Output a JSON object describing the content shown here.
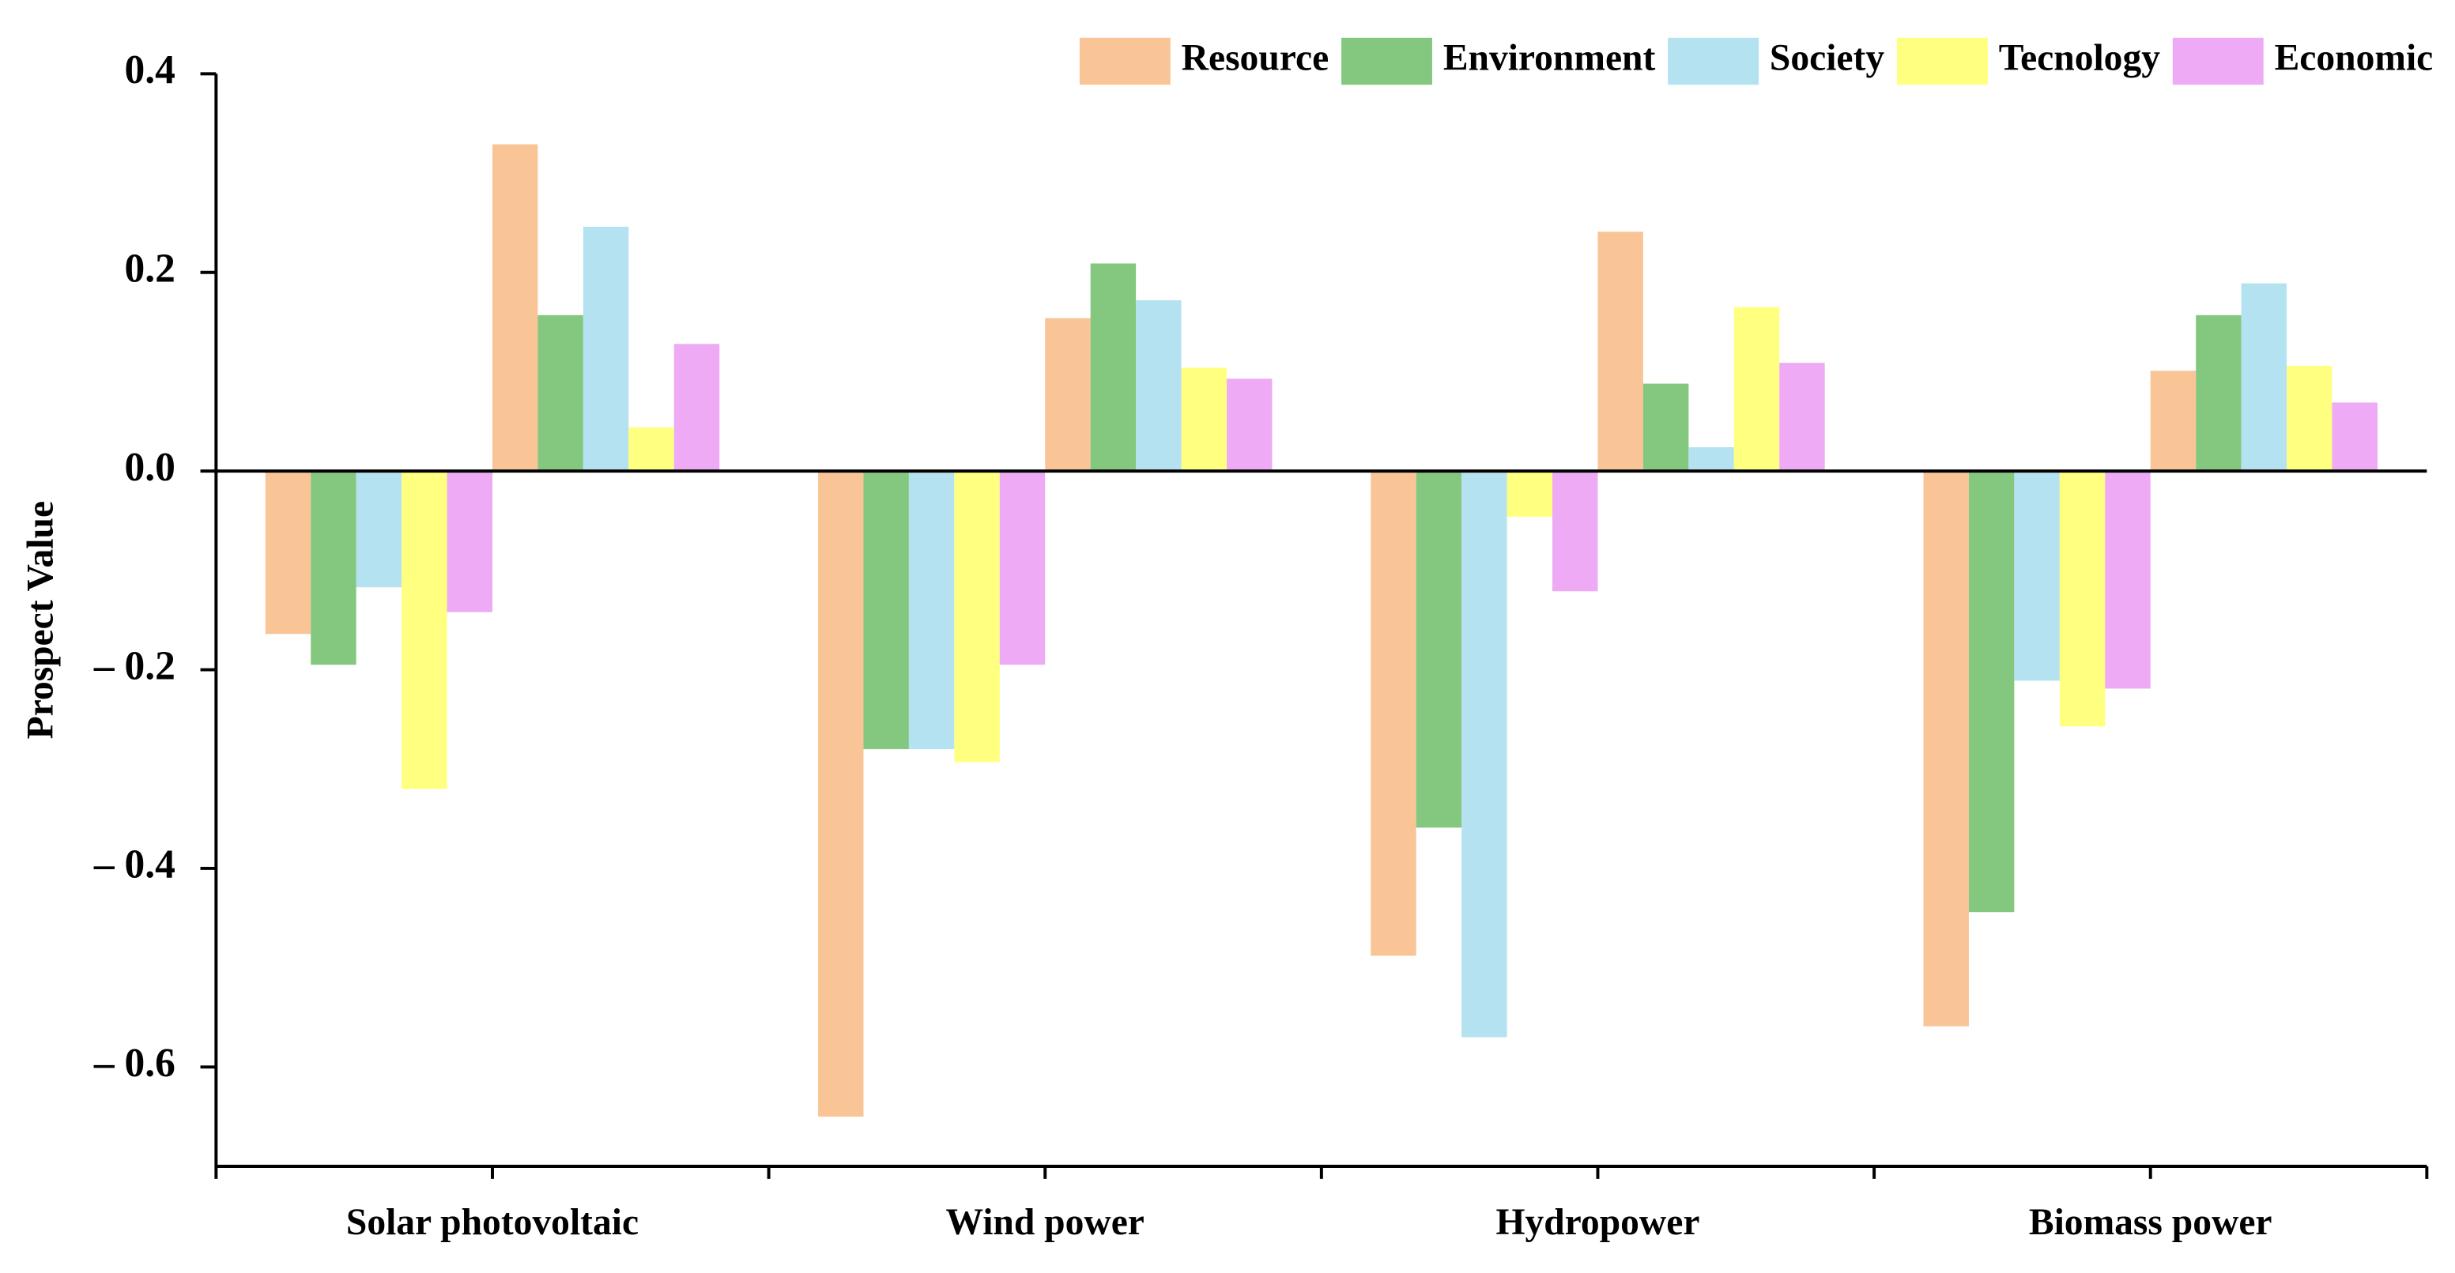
{
  "chart_data": {
    "type": "gain_loss_bar",
    "y_label": "Prospect Value",
    "categories": [
      "Solar photovoltaic",
      "Wind power",
      "Hydropower",
      "Biomass power"
    ],
    "series": [
      {
        "name": "Resource",
        "color": "#f9c596",
        "negative_values": [
          -0.164,
          -0.65,
          -0.488,
          -0.559
        ],
        "positive_values": [
          0.329,
          0.154,
          0.241,
          0.101
        ]
      },
      {
        "name": "Environment",
        "color": "#84c880",
        "negative_values": [
          -0.195,
          -0.28,
          -0.359,
          -0.444
        ],
        "positive_values": [
          0.157,
          0.209,
          0.088,
          0.157
        ]
      },
      {
        "name": "Society",
        "color": "#b4e2f0",
        "negative_values": [
          -0.117,
          -0.28,
          -0.57,
          -0.211
        ],
        "positive_values": [
          0.246,
          0.172,
          0.024,
          0.189
        ]
      },
      {
        "name": "Tecnology",
        "color": "#ffff80",
        "negative_values": [
          -0.32,
          -0.293,
          -0.046,
          -0.257
        ],
        "positive_values": [
          0.044,
          0.104,
          0.165,
          0.106
        ]
      },
      {
        "name": "Economic",
        "color": "#eeaaf5",
        "negative_values": [
          -0.142,
          -0.195,
          -0.121,
          -0.219
        ],
        "positive_values": [
          0.128,
          0.093,
          0.109,
          0.069
        ]
      }
    ],
    "ylim": [
      -0.7,
      0.4
    ],
    "yticks": [
      {
        "value": -0.6,
        "label": "– 0.6"
      },
      {
        "value": -0.4,
        "label": "– 0.4"
      },
      {
        "value": -0.2,
        "label": "– 0.2"
      },
      {
        "value": 0,
        "label": "0.0"
      },
      0.2,
      0.4
    ],
    "legend": "top-right"
  }
}
